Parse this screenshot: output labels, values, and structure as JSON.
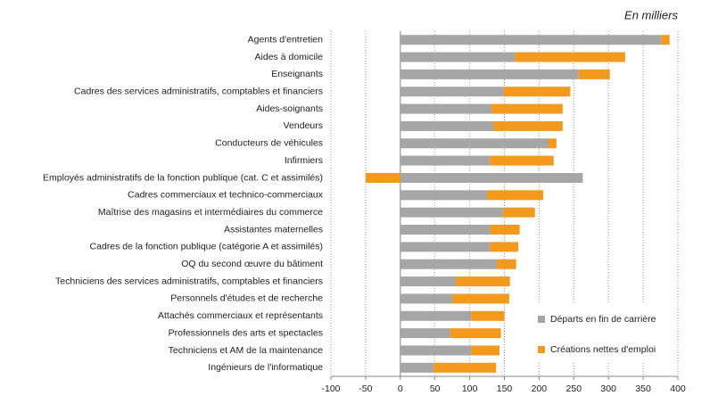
{
  "chart_data": {
    "type": "stacked-barh",
    "title": "En milliers",
    "categories": [
      "Agents d'entretien",
      "Aides à domicile",
      "Enseignants",
      "Cadres des services administratifs, comptables et financiers",
      "Aides-soignants",
      "Vendeurs",
      "Conducteurs de véhicules",
      "Infirmiers",
      "Employés administratifs de la fonction publique (cat. C et assimilés)",
      "Cadres commerciaux et technico-commerciaux",
      "Maîtrise des magasins et intermédiaires du commerce",
      "Assistantes maternelles",
      "Cadres de la fonction publique (catégorie A et assimilés)",
      "OQ du second œuvre du bâtiment",
      "Techniciens des services administratifs, comptables et financiers",
      "Personnels d'études et de recherche",
      "Attachés commerciaux et représentants",
      "Professionnels des arts et spectacles",
      "Techniciens et AM de la maintenance",
      "Ingénieurs de l'informatique"
    ],
    "series": [
      {
        "name": "Départs en fin de carrière",
        "color": "#a6a6a6",
        "values": [
          376,
          165,
          257,
          149,
          131,
          134,
          213,
          129,
          263,
          125,
          148,
          129,
          129,
          139,
          80,
          75,
          102,
          72,
          102,
          48
        ]
      },
      {
        "name": "Créations nettes d'emploi",
        "color": "#f39a1e",
        "values": [
          12,
          159,
          45,
          96,
          103,
          100,
          12,
          92,
          -50,
          81,
          46,
          43,
          41,
          28,
          78,
          82,
          48,
          73,
          41,
          90
        ]
      }
    ],
    "xlim": [
      -100,
      400
    ],
    "xticks": [
      -100,
      -50,
      0,
      50,
      100,
      150,
      200,
      250,
      300,
      350,
      400
    ],
    "grid": true
  }
}
